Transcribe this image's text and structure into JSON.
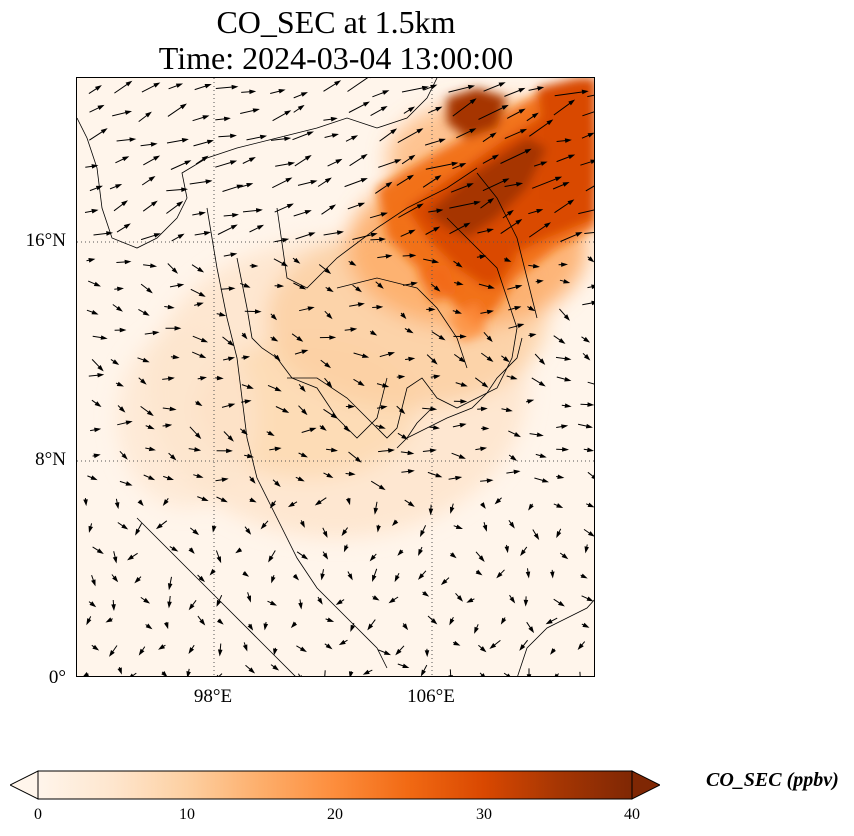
{
  "title": {
    "line1": "CO_SEC at 1.5km",
    "line2": "Time: 2024-03-04 13:00:00"
  },
  "map": {
    "lat_ticks": [
      {
        "label": "16°N",
        "value": 16
      },
      {
        "label": "8°N",
        "value": 8
      },
      {
        "label": "0°",
        "value": 0
      }
    ],
    "lon_ticks": [
      {
        "label": "98°E",
        "value": 98
      },
      {
        "label": "106°E",
        "value": 106
      }
    ],
    "extent": {
      "lon_min": 93,
      "lon_max": 112,
      "lat_min": 0,
      "lat_max": 22
    },
    "gridlines": true,
    "field": "CO_SEC",
    "overlay": "wind vectors"
  },
  "colorbar": {
    "label": "CO_SEC (ppbv)",
    "ticks": [
      "0",
      "10",
      "20",
      "30",
      "40"
    ],
    "min": 0,
    "max": 40,
    "extend": "both",
    "colors": [
      "#fff5eb",
      "#fee6ce",
      "#fdd0a2",
      "#fdae6b",
      "#fd8d3c",
      "#f16913",
      "#d94801",
      "#a63603",
      "#7f2704"
    ]
  }
}
